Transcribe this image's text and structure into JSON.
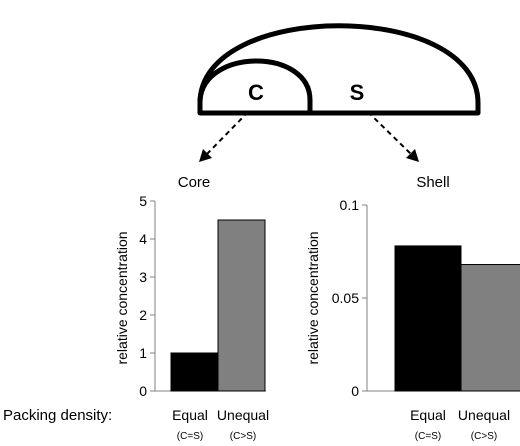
{
  "diagram": {
    "core_letter": "C",
    "shell_letter": "S",
    "core_label": "Core",
    "shell_label": "Shell"
  },
  "x_axis": {
    "title": "Packing density:",
    "categories": [
      {
        "name": "Equal",
        "sub": "(C=S)"
      },
      {
        "name": "Unequal",
        "sub": "(C>S)"
      }
    ]
  },
  "chart_data": [
    {
      "type": "bar",
      "title": "Core",
      "categories": [
        "Equal (C=S)",
        "Unequal (C>S)"
      ],
      "values": [
        1.0,
        4.5
      ],
      "bar_colors": [
        "#000000",
        "#808080"
      ],
      "ylabel": "relative concentration",
      "ylim": [
        0,
        5
      ],
      "yticks": [
        0,
        1,
        2,
        3,
        4,
        5
      ],
      "ytick_labels": [
        "0",
        "1",
        "2",
        "3",
        "4",
        "5"
      ],
      "grid": false
    },
    {
      "type": "bar",
      "title": "Shell",
      "categories": [
        "Equal (C=S)",
        "Unequal (C>S)"
      ],
      "values": [
        0.078,
        0.068
      ],
      "bar_colors": [
        "#000000",
        "#808080"
      ],
      "ylabel": "relative concentration",
      "ylim": [
        0,
        0.1
      ],
      "yticks": [
        0,
        0.05,
        0.1
      ],
      "ytick_labels": [
        "0",
        "0.05",
        "0.1"
      ],
      "grid": false
    }
  ]
}
